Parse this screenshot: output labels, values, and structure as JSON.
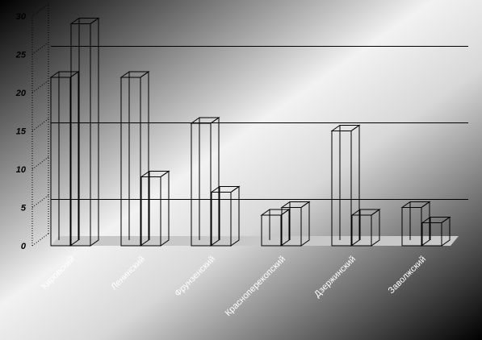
{
  "chart_data": {
    "type": "bar",
    "title": "",
    "xlabel": "",
    "ylabel": "",
    "categories": [
      "Кировский",
      "Ленинский",
      "Фрунзенский",
      "Красноперекопский",
      "Дзержинский",
      "Заволжский"
    ],
    "series": [
      {
        "values": [
          22,
          22,
          16,
          4,
          15,
          5
        ]
      },
      {
        "values": [
          29,
          9,
          7,
          5,
          4,
          3
        ]
      }
    ],
    "ylim": [
      0,
      30
    ],
    "yticks": [
      0,
      5,
      10,
      15,
      20,
      25,
      30
    ],
    "grid": true,
    "legend": "none",
    "colors": {
      "background_light": "#ffffff",
      "background_dark": "#000000",
      "floor": "#c8c8c8",
      "bar_stroke": "#000000",
      "grid": "#000000"
    }
  }
}
